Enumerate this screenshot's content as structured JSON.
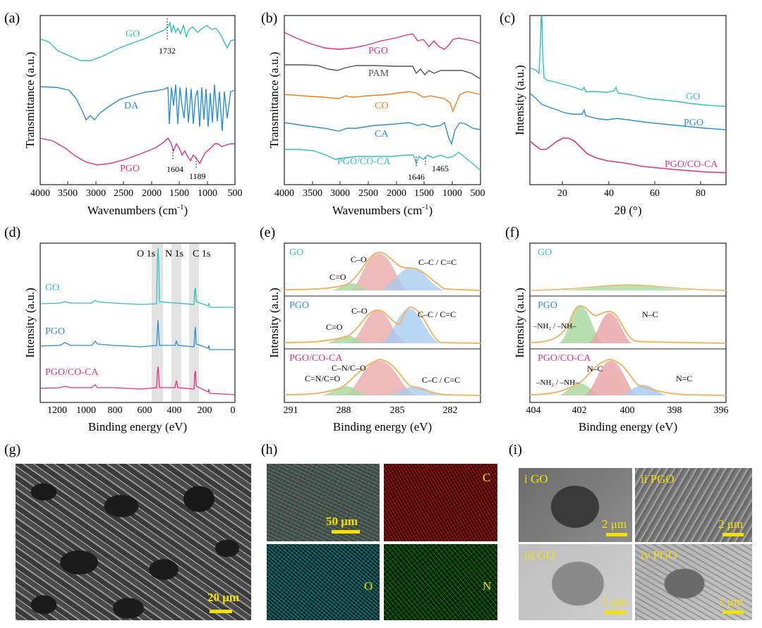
{
  "figure": {
    "panel_labels": [
      "(a)",
      "(b)",
      "(c)",
      "(d)",
      "(e)",
      "(f)",
      "(g)",
      "(h)",
      "(i)"
    ],
    "colors": {
      "teal": "#2ec4b6",
      "blue": "#2a8fd6",
      "magenta": "#e0337f",
      "gray": "#555555",
      "orange": "#f07d1a",
      "scalebar": "#f5e100"
    }
  },
  "chart_data": [
    {
      "panel": "(a)",
      "type": "line",
      "xlabel": "Wavenumbers (cm",
      "xlabel_sup": "-1",
      "ylabel": "Transmittance  (a.u.)",
      "xlim": [
        4000,
        500
      ],
      "x_ticks": [
        "4000",
        "3500",
        "3000",
        "2500",
        "2000",
        "1500",
        "1000",
        "500"
      ],
      "series": [
        {
          "name": "GO",
          "color": "#2ec4b6"
        },
        {
          "name": "DA",
          "color": "#2a8fd6"
        },
        {
          "name": "PGO",
          "color": "#e0337f"
        }
      ],
      "annotations": [
        "1732",
        "1604",
        "1189"
      ]
    },
    {
      "panel": "(b)",
      "type": "line",
      "xlabel": "Wavenumbers (cm",
      "xlabel_sup": "-1",
      "ylabel": "Transmittance  (a.u.)",
      "xlim": [
        4000,
        500
      ],
      "x_ticks": [
        "4000",
        "3500",
        "3000",
        "2500",
        "2000",
        "1500",
        "1000",
        "500"
      ],
      "series": [
        {
          "name": "PGO",
          "color": "#e0337f"
        },
        {
          "name": "PAM",
          "color": "#555555"
        },
        {
          "name": "CO",
          "color": "#f07d1a"
        },
        {
          "name": "CA",
          "color": "#2a8fd6"
        },
        {
          "name": "PGO/CO-CA",
          "color": "#2ec4b6"
        }
      ],
      "annotations": [
        "1646",
        "1465"
      ]
    },
    {
      "panel": "(c)",
      "type": "line",
      "xlabel": "2θ (°)",
      "ylabel": "Intensity  (a.u.)",
      "xlim": [
        5,
        90
      ],
      "x_ticks": [
        "20",
        "40",
        "60",
        "80"
      ],
      "series": [
        {
          "name": "GO",
          "color": "#2ec4b6"
        },
        {
          "name": "PGO",
          "color": "#2a8fd6"
        },
        {
          "name": "PGO/CO-CA",
          "color": "#e0337f"
        }
      ]
    },
    {
      "panel": "(d)",
      "type": "line",
      "xlabel": "Binding energy (eV)",
      "ylabel": "Intensity  (a.u.)",
      "xlim": [
        1350,
        0
      ],
      "x_ticks": [
        "1200",
        "1000",
        "800",
        "600",
        "400",
        "200",
        "0"
      ],
      "series": [
        {
          "name": "GO",
          "color": "#2ec4b6"
        },
        {
          "name": "PGO",
          "color": "#2a8fd6"
        },
        {
          "name": "PGO/CO-CA",
          "color": "#e0337f"
        }
      ],
      "peaks": [
        "O 1s",
        "N 1s",
        "C 1s"
      ]
    },
    {
      "panel": "(e)",
      "type": "line",
      "xlabel": "Binding energy (eV)",
      "ylabel": "Intensity  (a.u.)",
      "xlim": [
        291.5,
        280.5
      ],
      "x_ticks": [
        "291",
        "288",
        "285",
        "282"
      ],
      "subpanels": [
        {
          "name": "GO",
          "color": "#2ec4b6",
          "labels": [
            "C–O",
            "C=O",
            "C–C / C=C"
          ]
        },
        {
          "name": "PGO",
          "color": "#2a8fd6",
          "labels": [
            "C–O",
            "C=O",
            "C–C / C=C"
          ]
        },
        {
          "name": "PGO/CO-CA",
          "color": "#e0337f",
          "labels": [
            "C–N/C–O",
            "C=N/C=O",
            "C–C / C=C"
          ]
        }
      ]
    },
    {
      "panel": "(f)",
      "type": "line",
      "xlabel": "Binding energy (eV)",
      "ylabel": "Intensity  (a.u.)",
      "xlim": [
        404,
        396
      ],
      "x_ticks": [
        "404",
        "402",
        "400",
        "398",
        "396"
      ],
      "subpanels": [
        {
          "name": "GO",
          "color": "#2ec4b6",
          "labels": []
        },
        {
          "name": "PGO",
          "color": "#2a8fd6",
          "labels": [
            "–NH₂ / –NH–",
            "N–C"
          ]
        },
        {
          "name": "PGO/CO-CA",
          "color": "#e0337f",
          "labels": [
            "–NH₂ / –NH–",
            "N–C",
            "N=C"
          ]
        }
      ]
    }
  ],
  "micrographs": {
    "g_scale": "20 μm",
    "h_scale": "50 μm",
    "h_elements": [
      "C",
      "O",
      "N"
    ],
    "i_labels": [
      "i GO",
      "ii PGO",
      "iii GO",
      "iv PGO"
    ],
    "i_scales": [
      "2 μm",
      "2 μm",
      "1 μm",
      "1 μm"
    ]
  }
}
